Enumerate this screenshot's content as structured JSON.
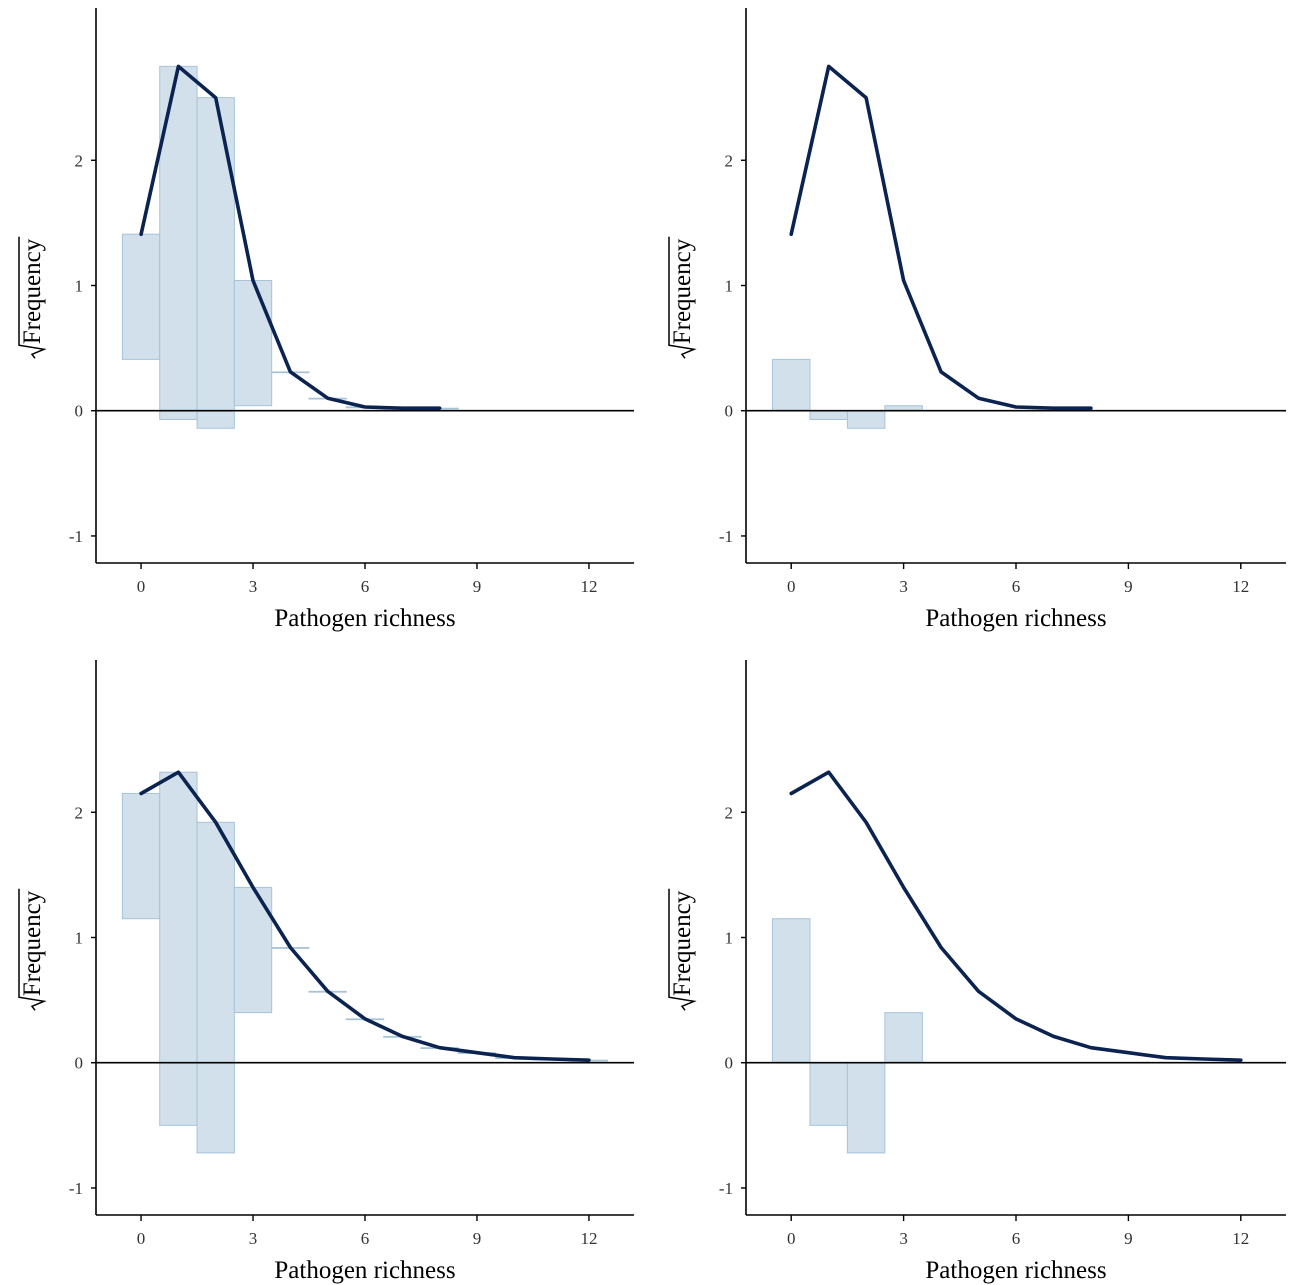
{
  "chart_data": [
    {
      "type": "rootogram",
      "style": "hanging",
      "xlabel": "Pathogen richness",
      "ylabel": "Frequency",
      "ylabel_sqrt": true,
      "xticks": [
        0,
        3,
        6,
        9,
        12
      ],
      "yticks": [
        -1,
        0,
        1,
        2
      ],
      "xlim": [
        -1.1,
        13.1
      ],
      "ylim": [
        -1.2,
        3.2
      ],
      "fitted": [
        [
          0,
          1.41
        ],
        [
          1,
          2.75
        ],
        [
          2,
          2.5
        ],
        [
          3,
          1.04
        ],
        [
          4,
          0.31
        ],
        [
          5,
          0.1
        ],
        [
          6,
          0.03
        ],
        [
          7,
          0.02
        ],
        [
          8,
          0.02
        ]
      ],
      "bars": [
        {
          "x": 0,
          "bottom": 0.41,
          "top": 1.41
        },
        {
          "x": 1,
          "bottom": -0.07,
          "top": 2.75
        },
        {
          "x": 2,
          "bottom": -0.14,
          "top": 2.5
        },
        {
          "x": 3,
          "bottom": 0.04,
          "top": 1.04
        },
        {
          "x": 4,
          "bottom": 0.31,
          "top": 0.31
        },
        {
          "x": 5,
          "bottom": 0.1,
          "top": 0.1
        },
        {
          "x": 6,
          "bottom": 0.03,
          "top": 0.03
        },
        {
          "x": 7,
          "bottom": 0.02,
          "top": 0.02
        },
        {
          "x": 8,
          "bottom": 0.02,
          "top": 0.02
        }
      ]
    },
    {
      "type": "rootogram",
      "style": "residual",
      "xlabel": "Pathogen richness",
      "ylabel": "Frequency",
      "ylabel_sqrt": true,
      "xticks": [
        0,
        3,
        6,
        9,
        12
      ],
      "yticks": [
        -1,
        0,
        1,
        2
      ],
      "xlim": [
        -1.1,
        13.1
      ],
      "ylim": [
        -1.2,
        3.2
      ],
      "fitted": [
        [
          0,
          1.41
        ],
        [
          1,
          2.75
        ],
        [
          2,
          2.5
        ],
        [
          3,
          1.04
        ],
        [
          4,
          0.31
        ],
        [
          5,
          0.1
        ],
        [
          6,
          0.03
        ],
        [
          7,
          0.02
        ],
        [
          8,
          0.02
        ]
      ],
      "bars": [
        {
          "x": 0,
          "bottom": 0,
          "top": 0.41
        },
        {
          "x": 1,
          "bottom": -0.07,
          "top": 0
        },
        {
          "x": 2,
          "bottom": -0.14,
          "top": 0
        },
        {
          "x": 3,
          "bottom": 0,
          "top": 0.04
        }
      ]
    },
    {
      "type": "rootogram",
      "style": "hanging",
      "xlabel": "Pathogen richness",
      "ylabel": "Frequency",
      "ylabel_sqrt": true,
      "xticks": [
        0,
        3,
        6,
        9,
        12
      ],
      "yticks": [
        -1,
        0,
        1,
        2
      ],
      "xlim": [
        -1.1,
        13.1
      ],
      "ylim": [
        -1.2,
        3.2
      ],
      "fitted": [
        [
          0,
          2.15
        ],
        [
          1,
          2.32
        ],
        [
          2,
          1.92
        ],
        [
          3,
          1.4
        ],
        [
          4,
          0.92
        ],
        [
          5,
          0.57
        ],
        [
          6,
          0.35
        ],
        [
          7,
          0.21
        ],
        [
          8,
          0.12
        ],
        [
          9,
          0.08
        ],
        [
          10,
          0.04
        ],
        [
          11,
          0.03
        ],
        [
          12,
          0.02
        ]
      ],
      "bars": [
        {
          "x": 0,
          "bottom": 1.15,
          "top": 2.15
        },
        {
          "x": 1,
          "bottom": -0.5,
          "top": 2.32
        },
        {
          "x": 2,
          "bottom": -0.72,
          "top": 1.92
        },
        {
          "x": 3,
          "bottom": 0.4,
          "top": 1.4
        },
        {
          "x": 4,
          "bottom": 0.92,
          "top": 0.92
        },
        {
          "x": 5,
          "bottom": 0.57,
          "top": 0.57
        },
        {
          "x": 6,
          "bottom": 0.35,
          "top": 0.35
        },
        {
          "x": 7,
          "bottom": 0.21,
          "top": 0.21
        },
        {
          "x": 8,
          "bottom": 0.12,
          "top": 0.12
        },
        {
          "x": 9,
          "bottom": 0.08,
          "top": 0.08
        },
        {
          "x": 10,
          "bottom": 0.04,
          "top": 0.04
        },
        {
          "x": 11,
          "bottom": 0.03,
          "top": 0.03
        },
        {
          "x": 12,
          "bottom": 0.02,
          "top": 0.02
        }
      ]
    },
    {
      "type": "rootogram",
      "style": "residual",
      "xlabel": "Pathogen richness",
      "ylabel": "Frequency",
      "ylabel_sqrt": true,
      "xticks": [
        0,
        3,
        6,
        9,
        12
      ],
      "yticks": [
        -1,
        0,
        1,
        2
      ],
      "xlim": [
        -1.1,
        13.1
      ],
      "ylim": [
        -1.2,
        3.2
      ],
      "fitted": [
        [
          0,
          2.15
        ],
        [
          1,
          2.32
        ],
        [
          2,
          1.92
        ],
        [
          3,
          1.4
        ],
        [
          4,
          0.92
        ],
        [
          5,
          0.57
        ],
        [
          6,
          0.35
        ],
        [
          7,
          0.21
        ],
        [
          8,
          0.12
        ],
        [
          9,
          0.08
        ],
        [
          10,
          0.04
        ],
        [
          11,
          0.03
        ],
        [
          12,
          0.02
        ]
      ],
      "bars": [
        {
          "x": 0,
          "bottom": 0,
          "top": 1.15
        },
        {
          "x": 1,
          "bottom": -0.5,
          "top": 0
        },
        {
          "x": 2,
          "bottom": -0.72,
          "top": 0
        },
        {
          "x": 3,
          "bottom": 0,
          "top": 0.4
        }
      ]
    }
  ]
}
